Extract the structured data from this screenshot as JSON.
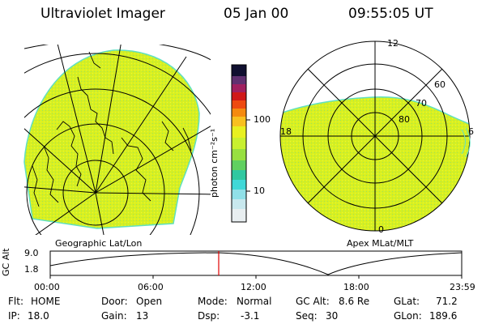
{
  "header": {
    "instrument": "Ultraviolet Imager",
    "date": "05 Jan 00",
    "time": "09:55:05 UT"
  },
  "colorbar": {
    "unit_label": "photon cm⁻²s⁻¹",
    "ticks": [
      "100",
      "10"
    ]
  },
  "geographic_panel": {
    "label": "Geographic Lat/Lon"
  },
  "apex_panel": {
    "label": "Apex MLat/MLT",
    "mlt_labels": [
      "12",
      "18",
      "6",
      "0"
    ],
    "lat_labels": [
      "60",
      "70",
      "80"
    ]
  },
  "altitude_plot": {
    "ylabel": "GC Alt",
    "yticks": [
      "9.0",
      "1.8"
    ],
    "xticks": [
      "00:00",
      "06:00",
      "12:00",
      "18:00",
      "23:59"
    ],
    "marker_time": "09:55"
  },
  "info": {
    "flt_label": "Flt:",
    "flt_value": "HOME",
    "ip_label": "IP:",
    "ip_value": "18.0",
    "door_label": "Door:",
    "door_value": "Open",
    "gain_label": "Gain:",
    "gain_value": "13",
    "mode_label": "Mode:",
    "mode_value": "Normal",
    "dsp_label": "Dsp:",
    "dsp_value": "-3.1",
    "gcalt_label": "GC Alt:",
    "gcalt_value": "8.6 Re",
    "seq_label": "Seq:",
    "seq_value": "30",
    "glat_label": "GLat:",
    "glat_value": "71.2",
    "glon_label": "GLon:",
    "glon_value": "189.6"
  },
  "colors": {
    "fill": "#d8f020",
    "marker": "#e00000"
  }
}
